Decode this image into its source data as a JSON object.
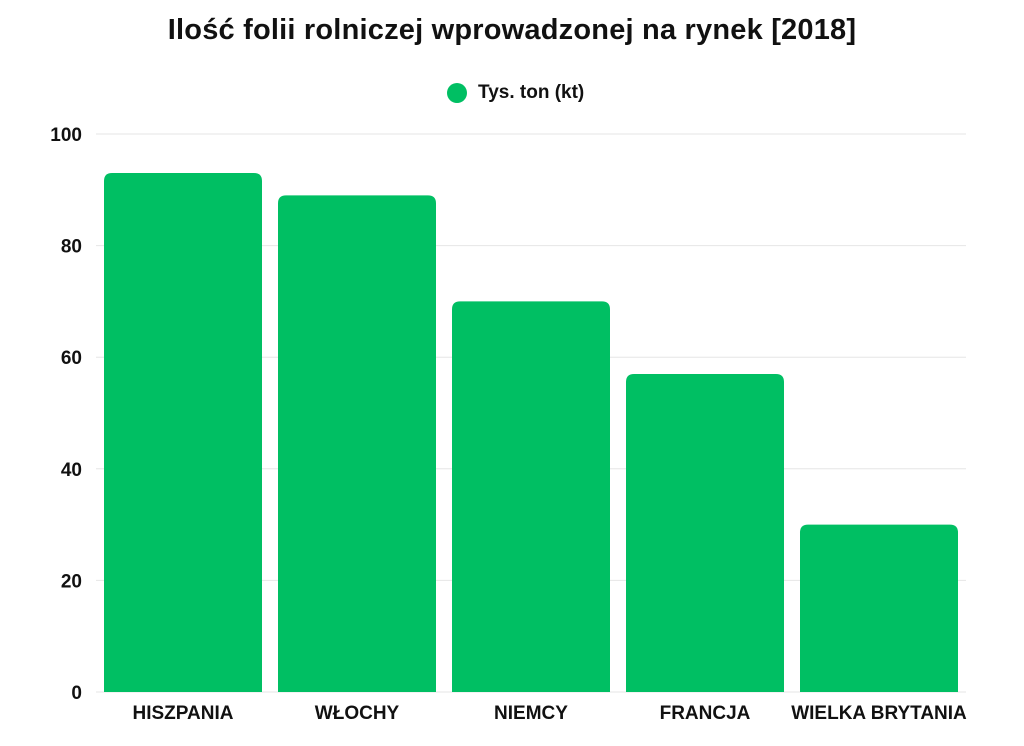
{
  "chart_data": {
    "type": "bar",
    "title": "Ilość folii rolniczej wprowadzonej na rynek [2018]",
    "categories": [
      "HISZPANIA",
      "WŁOCHY",
      "NIEMCY",
      "FRANCJA",
      "WIELKA BRYTANIA"
    ],
    "series": [
      {
        "name": "Tys. ton (kt)",
        "values": [
          93,
          89,
          70,
          57,
          30
        ]
      }
    ],
    "yticks": [
      "0",
      "20",
      "40",
      "60",
      "80",
      "100"
    ],
    "ylim": [
      0,
      100
    ],
    "xlabel": "",
    "ylabel": "",
    "grid": true,
    "legend_position": "top-center",
    "bar_color": "#00bf63",
    "grid_color": "#e6e6e6"
  }
}
